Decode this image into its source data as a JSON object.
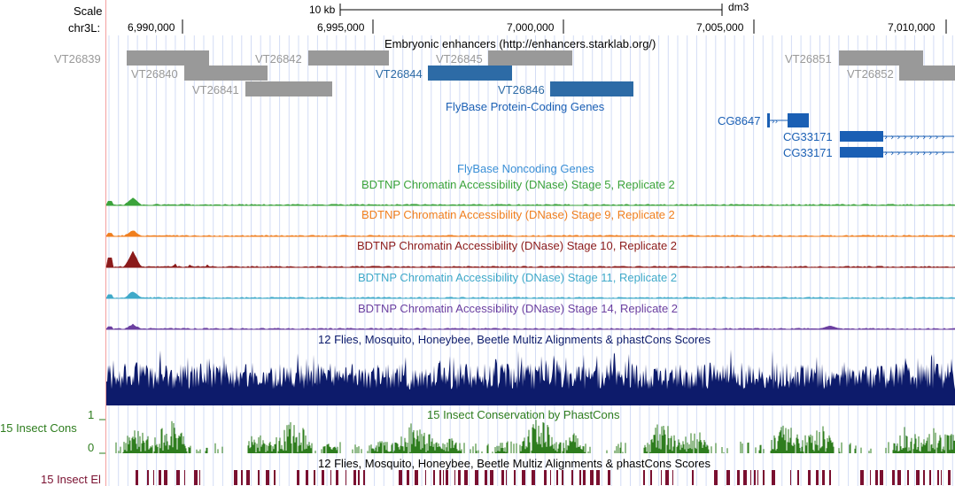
{
  "header": {
    "scale_label": "Scale",
    "scale_bar_label": "10 kb",
    "assembly": "dm3",
    "chrom_label": "chr3L:",
    "positions": [
      "6,990,000",
      "6,995,000",
      "7,000,000",
      "7,005,000",
      "7,010,000"
    ]
  },
  "tracks": {
    "enhancers": {
      "title": "Embryonic enhancers (http://enhancers.starklab.org/)",
      "items": [
        {
          "name": "VT26839",
          "status": "gray"
        },
        {
          "name": "VT26840",
          "status": "gray"
        },
        {
          "name": "VT26841",
          "status": "gray"
        },
        {
          "name": "VT26842",
          "status": "gray"
        },
        {
          "name": "VT26844",
          "status": "highlight"
        },
        {
          "name": "VT26845",
          "status": "gray"
        },
        {
          "name": "VT26846",
          "status": "highlight"
        },
        {
          "name": "VT26851",
          "status": "gray"
        },
        {
          "name": "VT26852",
          "status": "gray"
        }
      ]
    },
    "protein_coding": {
      "title": "FlyBase Protein-Coding Genes",
      "genes": [
        "CG8647",
        "CG33171",
        "CG33171"
      ]
    },
    "noncoding": {
      "title": "FlyBase Noncoding Genes"
    },
    "dnase": [
      {
        "title": "BDTNP Chromatin Accessibility (DNase) Stage 5, Replicate 2",
        "color": "#3ba33b"
      },
      {
        "title": "BDTNP Chromatin Accessibility (DNase) Stage 9, Replicate 2",
        "color": "#f07f1e"
      },
      {
        "title": "BDTNP Chromatin Accessibility (DNase) Stage 10, Replicate 2",
        "color": "#8b1a1a"
      },
      {
        "title": "BDTNP Chromatin Accessibility (DNase) Stage 11, Replicate 2",
        "color": "#3fa9c9"
      },
      {
        "title": "BDTNP Chromatin Accessibility (DNase) Stage 14, Replicate 2",
        "color": "#6b3fa0"
      }
    ],
    "multiz": {
      "title": "12 Flies, Mosquito, Honeybee, Beetle Multiz Alignments & phastCons Scores",
      "color": "#0d1b6b"
    },
    "insect_cons": {
      "title": "15 Insect Conservation by PhastCons",
      "side_label": "15 Insect Cons",
      "ymax": "1",
      "ymin": "0",
      "color": "#2e7d1e"
    },
    "insect_el": {
      "title": "12 Flies, Mosquito, Honeybee, Beetle Multiz Alignments & phastCons Scores",
      "side_label": "15 Insect El",
      "color": "#7a1030"
    }
  },
  "colors": {
    "gray_feature": "#999999",
    "highlight_feature": "#2d6ba6",
    "gene_blue": "#1a5fb4",
    "grid_line": "#d3dcf5",
    "left_rule": "#f4a0a0"
  }
}
